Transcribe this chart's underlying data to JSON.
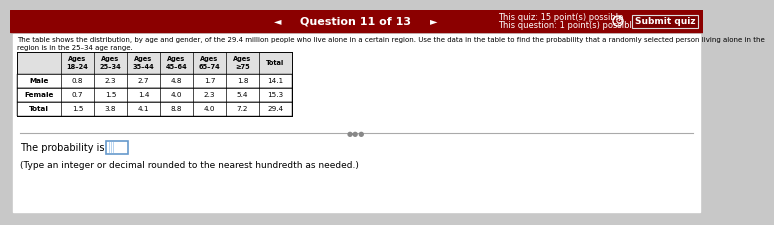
{
  "question_nav": "Question 11 of 13",
  "quiz_points": "This quiz: 15 point(s) possible",
  "question_points": "This question: 1 point(s) possible",
  "submit_btn": "Submit quiz",
  "main_text_line1": "The table shows the distribution, by age and gender, of the 29.4 million people who live alone in a certain region. Use the data in the table to find the probability that a randomly selected person living alone in the",
  "main_text_line2": "region is in the 25–34 age range.",
  "col_headers": [
    "Ages\n18–24",
    "Ages\n25–34",
    "Ages\n35–44",
    "Ages\n45–64",
    "Ages\n65–74",
    "Ages\n≥75",
    "Total"
  ],
  "row_labels": [
    "Male",
    "Female",
    "Total"
  ],
  "table_data": [
    [
      0.8,
      2.3,
      2.7,
      4.8,
      1.7,
      1.8,
      14.1
    ],
    [
      0.7,
      1.5,
      1.4,
      4.0,
      2.3,
      5.4,
      15.3
    ],
    [
      1.5,
      3.8,
      4.1,
      8.8,
      4.0,
      7.2,
      29.4
    ]
  ],
  "probability_label": "The probability is",
  "answer_note": "(Type an integer or decimal rounded to the nearest hundredth as needed.)",
  "bg_color": "#c8c8c8",
  "content_bg": "#ffffff",
  "top_bar_color": "#8B0000",
  "submit_btn_color": "#7B0000",
  "submit_text_color": "#ffffff",
  "nav_text_color": "#ffffff",
  "table_header_bg": "#e0e0e0",
  "divider_color": "#aaaaaa",
  "input_border_color": "#6699cc"
}
